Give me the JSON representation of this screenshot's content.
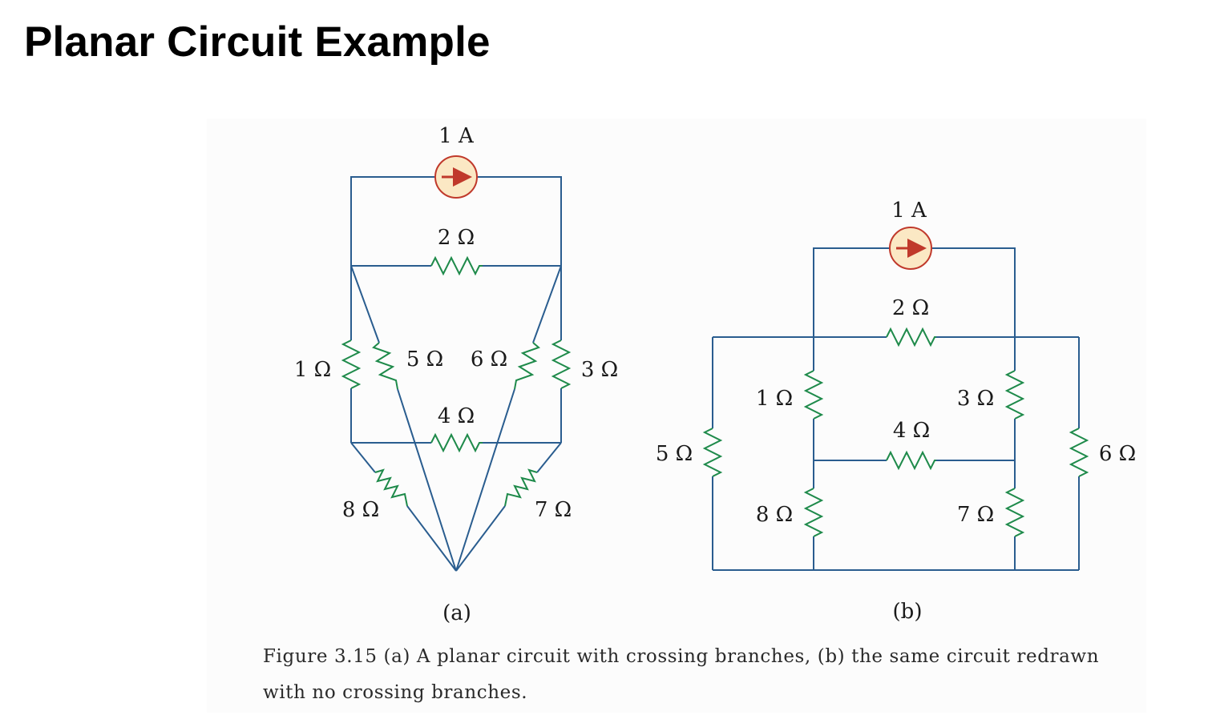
{
  "title": "Planar Circuit Example",
  "figure_a": {
    "source_label": "1 A",
    "r2": "2 Ω",
    "r1": "1 Ω",
    "r5": "5 Ω",
    "r6": "6 Ω",
    "r3": "3 Ω",
    "r4": "4 Ω",
    "r8": "8 Ω",
    "r7": "7 Ω",
    "sublabel": "(a)"
  },
  "figure_b": {
    "source_label": "1 A",
    "r2": "2 Ω",
    "r1": "1 Ω",
    "r3": "3 Ω",
    "r4": "4 Ω",
    "r5": "5 Ω",
    "r6": "6 Ω",
    "r8": "8 Ω",
    "r7": "7 Ω",
    "sublabel": "(b)"
  },
  "caption": "Figure 3.15 (a) A planar circuit with crossing branches, (b) the same circuit redrawn with no crossing branches.",
  "colors": {
    "wire": "#2a5d8f",
    "resistor": "#1e8a4a",
    "source_fill": "#fbe8c4",
    "source_stroke": "#c0392b"
  }
}
